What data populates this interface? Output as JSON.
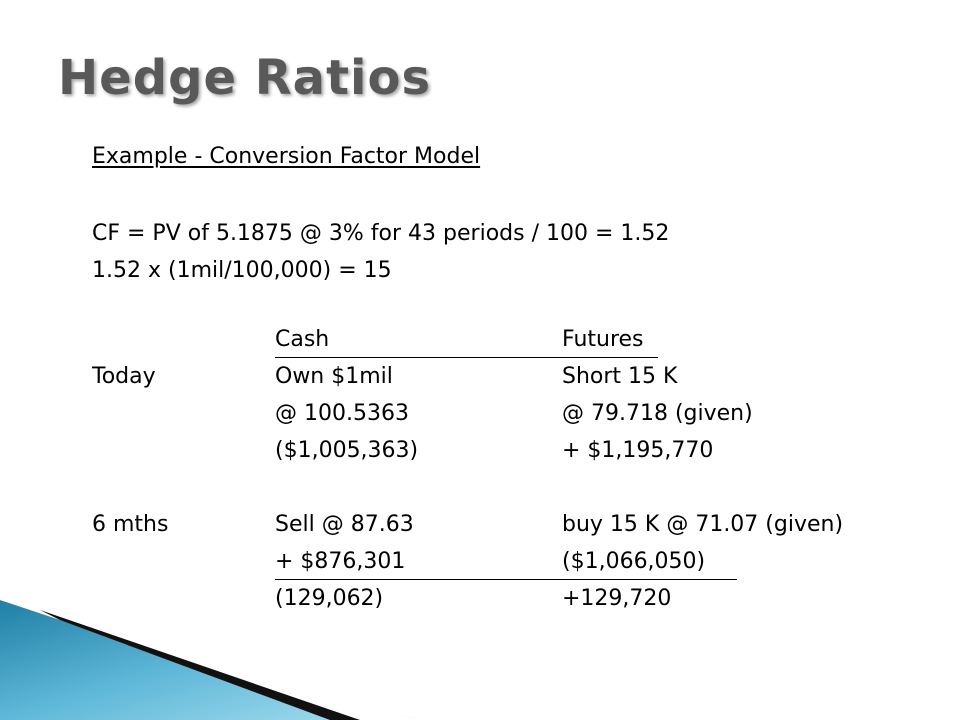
{
  "slide": {
    "title": "Hedge Ratios",
    "subtitle": "Example - Conversion Factor Model",
    "lines": [
      "CF = PV of 5.1875 @ 3% for 43 periods / 100 = 1.52",
      "1.52  x  (1mil/100,000) = 15"
    ]
  },
  "table": {
    "headers": [
      "",
      "Cash",
      "Futures"
    ],
    "rows": [
      [
        "Today",
        "Own $1mil",
        "Short 15 K"
      ],
      [
        "",
        "@ 100.5363",
        "@ 79.718 (given)"
      ],
      [
        "",
        "($1,005,363)",
        "+ $1,195,770"
      ],
      [
        "6 mths",
        "Sell @ 87.63",
        "buy 15 K @ 71.07 (given)"
      ],
      [
        "",
        "+ $876,301",
        "($1,066,050)"
      ],
      [
        "",
        "(129,062)",
        "+129,720"
      ]
    ]
  },
  "colors": {
    "title": "#595959",
    "accent_teal": "#2a8fb3",
    "accent_light": "#8fd0e6"
  }
}
